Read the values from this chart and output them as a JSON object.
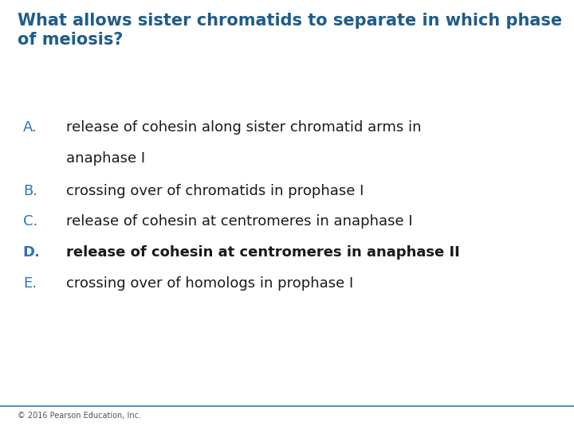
{
  "title_line1": "What allows sister chromatids to separate in which phase",
  "title_line2": "of meiosis?",
  "title_color": "#1F5C8B",
  "title_fontsize": 15,
  "title_bold": true,
  "options": [
    {
      "letter": "A.",
      "line1": "release of cohesin along sister chromatid arms in",
      "line2": "anaphase I",
      "bold": false,
      "letter_color": "#2E74B5",
      "text_color": "#1a1a1a",
      "two_lines": true
    },
    {
      "letter": "B.",
      "line1": "crossing over of chromatids in prophase I",
      "line2": "",
      "bold": false,
      "letter_color": "#2E74B5",
      "text_color": "#1a1a1a",
      "two_lines": false
    },
    {
      "letter": "C.",
      "line1": "release of cohesin at centromeres in anaphase I",
      "line2": "",
      "bold": false,
      "letter_color": "#2E74B5",
      "text_color": "#1a1a1a",
      "two_lines": false
    },
    {
      "letter": "D.",
      "line1": "release of cohesin at centromeres in anaphase II",
      "line2": "",
      "bold": true,
      "letter_color": "#2E74B5",
      "text_color": "#1a1a1a",
      "two_lines": false
    },
    {
      "letter": "E.",
      "line1": "crossing over of homologs in prophase I",
      "line2": "",
      "bold": false,
      "letter_color": "#2E74B5",
      "text_color": "#1a1a1a",
      "two_lines": false
    }
  ],
  "footer_text": "© 2016 Pearson Education, Inc.",
  "footer_color": "#555555",
  "footer_fontsize": 7,
  "background_color": "#ffffff",
  "line_color": "#2E74B5",
  "options_fontsize": 13,
  "letter_fontsize": 13
}
